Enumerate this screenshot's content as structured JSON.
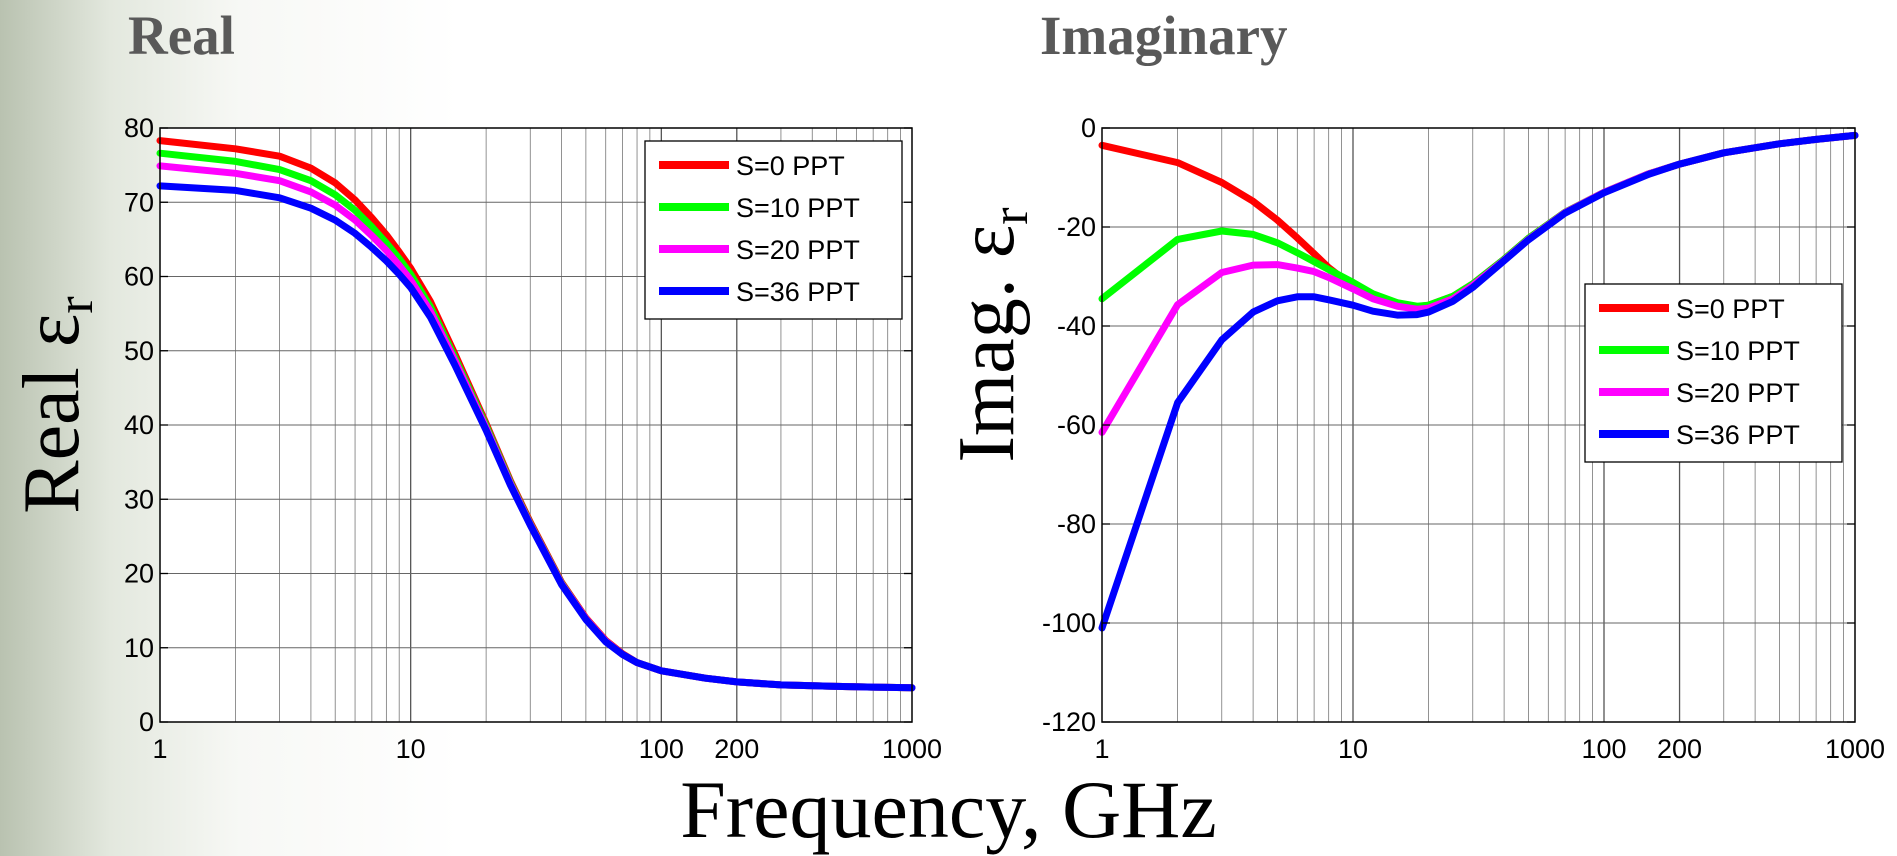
{
  "headings": {
    "real": "Real",
    "imag": "Imaginary"
  },
  "xlabel": "Frequency, GHz",
  "chart_data": [
    {
      "type": "line",
      "title": "Real",
      "ylabel": "Real ε",
      "ylabel_sub": "r",
      "xlabel": "Frequency, GHz",
      "xscale": "log",
      "xlim": [
        1,
        1000
      ],
      "ylim": [
        0,
        80
      ],
      "yticks": [
        0,
        10,
        20,
        30,
        40,
        50,
        60,
        70,
        80
      ],
      "xticks": [
        1,
        10,
        100,
        200,
        1000
      ],
      "xtick_labels": [
        "1",
        "10",
        "100",
        "200",
        "1000"
      ],
      "grid": true,
      "legend_position": "top-right",
      "x": [
        1,
        2,
        3,
        4,
        5,
        6,
        7,
        8,
        9,
        10,
        12,
        15,
        20,
        25,
        30,
        40,
        50,
        60,
        70,
        80,
        100,
        150,
        200,
        300,
        500,
        700,
        1000
      ],
      "series": [
        {
          "name": "S=0 PPT",
          "color": "#ff0000",
          "values": [
            78.3,
            77.2,
            76.2,
            74.6,
            72.6,
            70.3,
            67.9,
            65.6,
            63.3,
            61.1,
            56.6,
            49.6,
            40.2,
            32.5,
            26.9,
            18.8,
            14.0,
            11.0,
            9.2,
            8.0,
            6.9,
            5.9,
            5.4,
            5.0,
            4.8,
            4.7,
            4.6
          ]
        },
        {
          "name": "S=10 PPT",
          "color": "#00ff00",
          "values": [
            76.6,
            75.5,
            74.4,
            72.9,
            71.0,
            68.9,
            66.7,
            64.5,
            62.4,
            60.3,
            55.9,
            49.1,
            39.9,
            32.3,
            26.7,
            18.7,
            13.9,
            10.9,
            9.1,
            8.0,
            6.9,
            5.9,
            5.4,
            5.0,
            4.8,
            4.7,
            4.6
          ]
        },
        {
          "name": "S=20 PPT",
          "color": "#ff00ff",
          "values": [
            74.9,
            73.9,
            72.9,
            71.4,
            69.6,
            67.6,
            65.5,
            63.5,
            61.5,
            59.5,
            55.3,
            48.7,
            39.6,
            32.1,
            26.6,
            18.6,
            13.9,
            10.9,
            9.1,
            8.0,
            6.9,
            5.9,
            5.4,
            5.0,
            4.8,
            4.7,
            4.6
          ]
        },
        {
          "name": "S=36 PPT",
          "color": "#0000ff",
          "values": [
            72.2,
            71.6,
            70.6,
            69.2,
            67.6,
            65.8,
            63.9,
            62.1,
            60.3,
            58.5,
            54.5,
            48.1,
            39.3,
            31.9,
            26.5,
            18.5,
            13.8,
            10.8,
            9.1,
            8.0,
            6.9,
            5.9,
            5.4,
            5.0,
            4.8,
            4.7,
            4.6
          ]
        }
      ]
    },
    {
      "type": "line",
      "title": "Imaginary",
      "ylabel": "Imag. ε",
      "ylabel_sub": "r",
      "xlabel": "Frequency, GHz",
      "xscale": "log",
      "xlim": [
        1,
        1000
      ],
      "ylim": [
        -120,
        0
      ],
      "yticks": [
        -120,
        -100,
        -80,
        -60,
        -40,
        -20,
        0
      ],
      "xticks": [
        1,
        10,
        100,
        200,
        1000
      ],
      "xtick_labels": [
        "1",
        "10",
        "100",
        "200",
        "1000"
      ],
      "grid": true,
      "legend_position": "right",
      "x": [
        1,
        2,
        3,
        4,
        5,
        6,
        7,
        8,
        10,
        12,
        15,
        18,
        20,
        25,
        30,
        40,
        50,
        70,
        100,
        150,
        200,
        300,
        500,
        700,
        1000
      ],
      "series": [
        {
          "name": "S=0 PPT",
          "color": "#ff0000",
          "values": [
            -3.5,
            -7.0,
            -11.0,
            -14.8,
            -18.6,
            -22.2,
            -25.4,
            -28.2,
            -32.0,
            -34.3,
            -35.8,
            -36.1,
            -35.8,
            -34.0,
            -31.5,
            -26.5,
            -22.3,
            -17.0,
            -13.0,
            -9.3,
            -7.3,
            -5.0,
            -3.2,
            -2.3,
            -1.5
          ]
        },
        {
          "name": "S=10 PPT",
          "color": "#00ff00",
          "values": [
            -34.5,
            -22.5,
            -20.8,
            -21.5,
            -23.2,
            -25.2,
            -27.0,
            -28.6,
            -31.2,
            -33.5,
            -35.3,
            -36.0,
            -35.8,
            -34.0,
            -31.5,
            -26.5,
            -22.3,
            -17.0,
            -13.0,
            -9.3,
            -7.3,
            -5.0,
            -3.2,
            -2.3,
            -1.5
          ]
        },
        {
          "name": "S=20 PPT",
          "color": "#ff00ff",
          "values": [
            -61.5,
            -35.7,
            -29.2,
            -27.7,
            -27.6,
            -28.3,
            -29.0,
            -30.2,
            -32.5,
            -34.5,
            -36.0,
            -36.6,
            -36.4,
            -34.5,
            -31.8,
            -26.7,
            -22.5,
            -17.1,
            -13.0,
            -9.3,
            -7.3,
            -5.0,
            -3.2,
            -2.3,
            -1.5
          ]
        },
        {
          "name": "S=36 PPT",
          "color": "#0000ff",
          "values": [
            -101.0,
            -55.5,
            -42.8,
            -37.2,
            -34.9,
            -34.1,
            -34.1,
            -34.7,
            -35.8,
            -37.0,
            -37.8,
            -37.7,
            -37.2,
            -35.0,
            -32.2,
            -26.8,
            -22.6,
            -17.2,
            -13.1,
            -9.4,
            -7.3,
            -5.0,
            -3.2,
            -2.3,
            -1.5
          ]
        }
      ]
    }
  ]
}
